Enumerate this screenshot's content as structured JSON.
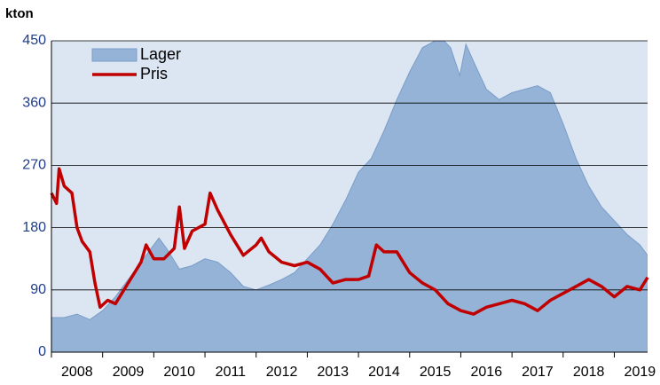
{
  "chart_data": {
    "type": "area_line",
    "y_label": "kton",
    "ylim": [
      0,
      450
    ],
    "yticks": [
      0,
      90,
      180,
      270,
      360,
      450
    ],
    "grid": true,
    "xlim": [
      2008,
      2019.65
    ],
    "xticks": [
      {
        "value": 2008.5,
        "label": "2008"
      },
      {
        "value": 2009.5,
        "label": "2009"
      },
      {
        "value": 2010.5,
        "label": "2010"
      },
      {
        "value": 2011.5,
        "label": "2011"
      },
      {
        "value": 2012.5,
        "label": "2012"
      },
      {
        "value": 2013.5,
        "label": "2013"
      },
      {
        "value": 2014.5,
        "label": "2014"
      },
      {
        "value": 2015.5,
        "label": "2015"
      },
      {
        "value": 2016.5,
        "label": "2016"
      },
      {
        "value": 2017.5,
        "label": "2017"
      },
      {
        "value": 2018.5,
        "label": "2018"
      },
      {
        "value": 2019.5,
        "label": "2019"
      }
    ],
    "legend": "upper left",
    "series": [
      {
        "name": "Lager",
        "type": "area",
        "color": "#94b3d7",
        "x": [
          2008,
          2008.25,
          2008.5,
          2008.75,
          2009,
          2009.25,
          2009.5,
          2009.75,
          2010,
          2010.1,
          2010.25,
          2010.5,
          2010.75,
          2011,
          2011.25,
          2011.5,
          2011.75,
          2012,
          2012.25,
          2012.5,
          2012.75,
          2013,
          2013.25,
          2013.5,
          2013.75,
          2014,
          2014.25,
          2014.5,
          2014.75,
          2015,
          2015.25,
          2015.5,
          2015.67,
          2015.8,
          2015.98,
          2016.1,
          2016.25,
          2016.5,
          2016.75,
          2017,
          2017.25,
          2017.5,
          2017.75,
          2018,
          2018.25,
          2018.5,
          2018.75,
          2019,
          2019.25,
          2019.5,
          2019.65
        ],
        "values": [
          50,
          50,
          55,
          47,
          60,
          80,
          105,
          130,
          155,
          165,
          150,
          120,
          125,
          135,
          130,
          115,
          95,
          90,
          97,
          105,
          115,
          135,
          155,
          185,
          220,
          260,
          280,
          320,
          365,
          405,
          440,
          450,
          450,
          440,
          400,
          445,
          420,
          380,
          365,
          375,
          380,
          385,
          375,
          330,
          280,
          240,
          210,
          190,
          170,
          155,
          140
        ]
      },
      {
        "name": "Pris",
        "type": "line",
        "color": "#c00000",
        "x": [
          2008,
          2008.1,
          2008.15,
          2008.25,
          2008.4,
          2008.5,
          2008.6,
          2008.75,
          2008.85,
          2008.95,
          2009.1,
          2009.25,
          2009.5,
          2009.75,
          2009.85,
          2010,
          2010.2,
          2010.4,
          2010.5,
          2010.6,
          2010.75,
          2011,
          2011.1,
          2011.25,
          2011.5,
          2011.75,
          2012,
          2012.1,
          2012.25,
          2012.5,
          2012.75,
          2013,
          2013.25,
          2013.5,
          2013.75,
          2014,
          2014.2,
          2014.35,
          2014.5,
          2014.75,
          2015,
          2015.25,
          2015.5,
          2015.75,
          2016,
          2016.25,
          2016.5,
          2016.75,
          2017,
          2017.25,
          2017.5,
          2017.75,
          2018,
          2018.25,
          2018.5,
          2018.75,
          2019,
          2019.25,
          2019.5,
          2019.65
        ],
        "values": [
          230,
          215,
          265,
          240,
          230,
          180,
          160,
          145,
          100,
          65,
          75,
          70,
          100,
          130,
          155,
          135,
          135,
          150,
          210,
          150,
          175,
          185,
          230,
          205,
          170,
          140,
          155,
          165,
          145,
          130,
          125,
          130,
          120,
          100,
          105,
          105,
          110,
          155,
          145,
          145,
          115,
          100,
          90,
          70,
          60,
          55,
          65,
          70,
          75,
          70,
          60,
          75,
          85,
          95,
          105,
          95,
          80,
          95,
          90,
          108
        ]
      }
    ]
  }
}
